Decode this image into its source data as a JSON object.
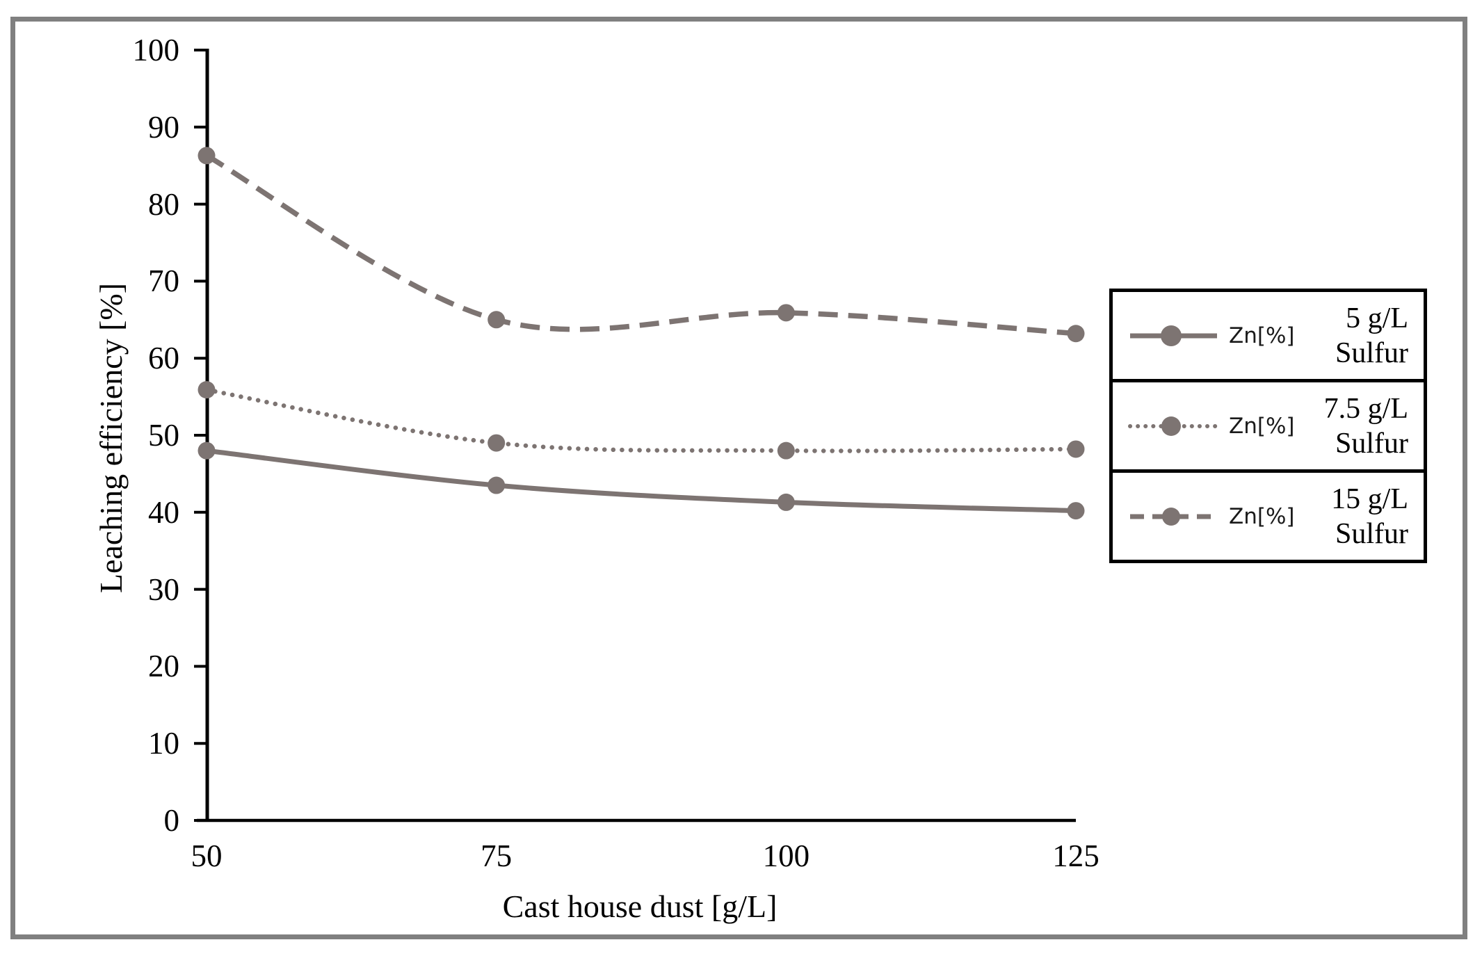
{
  "page": {
    "background": "#ffffff"
  },
  "colors": {
    "frame": "#808080",
    "axis": "#000000",
    "series": "#7D7472",
    "text": "#000000"
  },
  "chart_data": {
    "type": "line",
    "title": "",
    "xlabel": "Cast house dust [g/L]",
    "ylabel": "Leaching efficiency [%]",
    "x": [
      50,
      75,
      100,
      125
    ],
    "xticks": [
      50,
      75,
      100,
      125
    ],
    "yticks": [
      0,
      10,
      20,
      30,
      40,
      50,
      60,
      70,
      80,
      90,
      100
    ],
    "xlim": [
      50,
      125
    ],
    "ylim": [
      0,
      100
    ],
    "grid": false,
    "legend_position": "right",
    "line_smoothing": true,
    "series": [
      {
        "name": "Zn[%] 5 g/L Sulfur",
        "marker_label": "Zn[%]",
        "legend_lines": [
          "5 g/L",
          "Sulfur"
        ],
        "line_style": "solid",
        "marker": "circle",
        "values": [
          48.0,
          43.5,
          41.3,
          40.2
        ]
      },
      {
        "name": "Zn[%] 7.5 g/L Sulfur",
        "marker_label": "Zn[%]",
        "legend_lines": [
          "7.5 g/L",
          "Sulfur"
        ],
        "line_style": "dotted",
        "marker": "circle",
        "values": [
          55.9,
          49.0,
          48.0,
          48.2
        ]
      },
      {
        "name": "Zn[%] 15 g/L Sulfur",
        "marker_label": "Zn[%]",
        "legend_lines": [
          "15 g/L",
          "Sulfur"
        ],
        "line_style": "dashed",
        "marker": "circle",
        "values": [
          86.3,
          65.0,
          65.9,
          63.2
        ]
      }
    ]
  }
}
